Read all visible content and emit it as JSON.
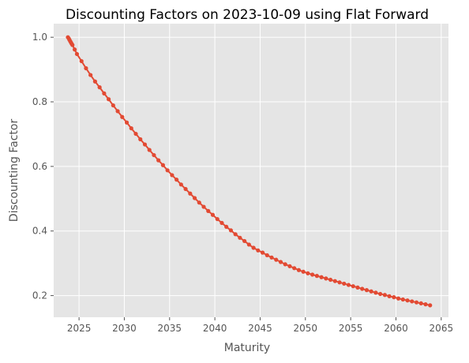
{
  "chart_data": {
    "type": "line",
    "title": "Discounting Factors on 2023-10-09 using Flat Forward",
    "xlabel": "Maturity",
    "ylabel": "Discounting Factor",
    "xlim": [
      2022.2,
      2065.8
    ],
    "ylim": [
      0.133,
      1.042
    ],
    "x_ticks": [
      2025,
      2030,
      2035,
      2040,
      2045,
      2050,
      2055,
      2060,
      2065
    ],
    "y_ticks": [
      0.2,
      0.4,
      0.6,
      0.8,
      1.0
    ],
    "y_tick_labels": [
      "0.2",
      "0.4",
      "0.6",
      "0.8",
      "1.0"
    ],
    "grid": true,
    "background": "#e5e5e5",
    "series_color": "#e24a33",
    "series": [
      {
        "x": [
          2023.77,
          2023.87,
          2023.94,
          2024.02,
          2024.1,
          2024.18,
          2024.27,
          2024.52,
          2024.77,
          2025.27,
          2025.77,
          2026.27,
          2026.77,
          2027.27,
          2027.77,
          2028.27,
          2028.77,
          2029.27,
          2029.77,
          2030.27,
          2030.77,
          2031.27,
          2031.77,
          2032.27,
          2032.77,
          2033.27,
          2033.77,
          2034.27,
          2034.77,
          2035.27,
          2035.77,
          2036.27,
          2036.77,
          2037.27,
          2037.77,
          2038.27,
          2038.77,
          2039.27,
          2039.77,
          2040.27,
          2040.77,
          2041.27,
          2041.77,
          2042.27,
          2042.77,
          2043.27,
          2043.77,
          2044.27,
          2044.77,
          2045.27,
          2045.77,
          2046.27,
          2046.77,
          2047.27,
          2047.77,
          2048.27,
          2048.77,
          2049.27,
          2049.77,
          2050.27,
          2050.77,
          2051.27,
          2051.77,
          2052.27,
          2052.77,
          2053.27,
          2053.77,
          2054.27,
          2054.77,
          2055.27,
          2055.77,
          2056.27,
          2056.77,
          2057.27,
          2057.77,
          2058.27,
          2058.77,
          2059.27,
          2059.77,
          2060.27,
          2060.77,
          2061.27,
          2061.77,
          2062.27,
          2062.77,
          2063.27,
          2063.77
        ],
        "values": [
          1.0,
          0.996,
          0.992,
          0.988,
          0.984,
          0.98,
          0.976,
          0.962,
          0.948,
          0.926,
          0.904,
          0.883,
          0.863,
          0.845,
          0.826,
          0.808,
          0.789,
          0.771,
          0.753,
          0.736,
          0.718,
          0.701,
          0.684,
          0.668,
          0.651,
          0.635,
          0.619,
          0.604,
          0.588,
          0.573,
          0.559,
          0.544,
          0.53,
          0.516,
          0.502,
          0.488,
          0.475,
          0.462,
          0.45,
          0.437,
          0.425,
          0.413,
          0.402,
          0.39,
          0.379,
          0.369,
          0.358,
          0.348,
          0.34,
          0.333,
          0.325,
          0.318,
          0.311,
          0.304,
          0.297,
          0.291,
          0.285,
          0.279,
          0.274,
          0.269,
          0.265,
          0.261,
          0.257,
          0.253,
          0.249,
          0.245,
          0.241,
          0.237,
          0.233,
          0.229,
          0.225,
          0.221,
          0.217,
          0.213,
          0.209,
          0.205,
          0.202,
          0.198,
          0.195,
          0.191,
          0.188,
          0.185,
          0.182,
          0.179,
          0.176,
          0.173,
          0.17
        ]
      }
    ]
  }
}
